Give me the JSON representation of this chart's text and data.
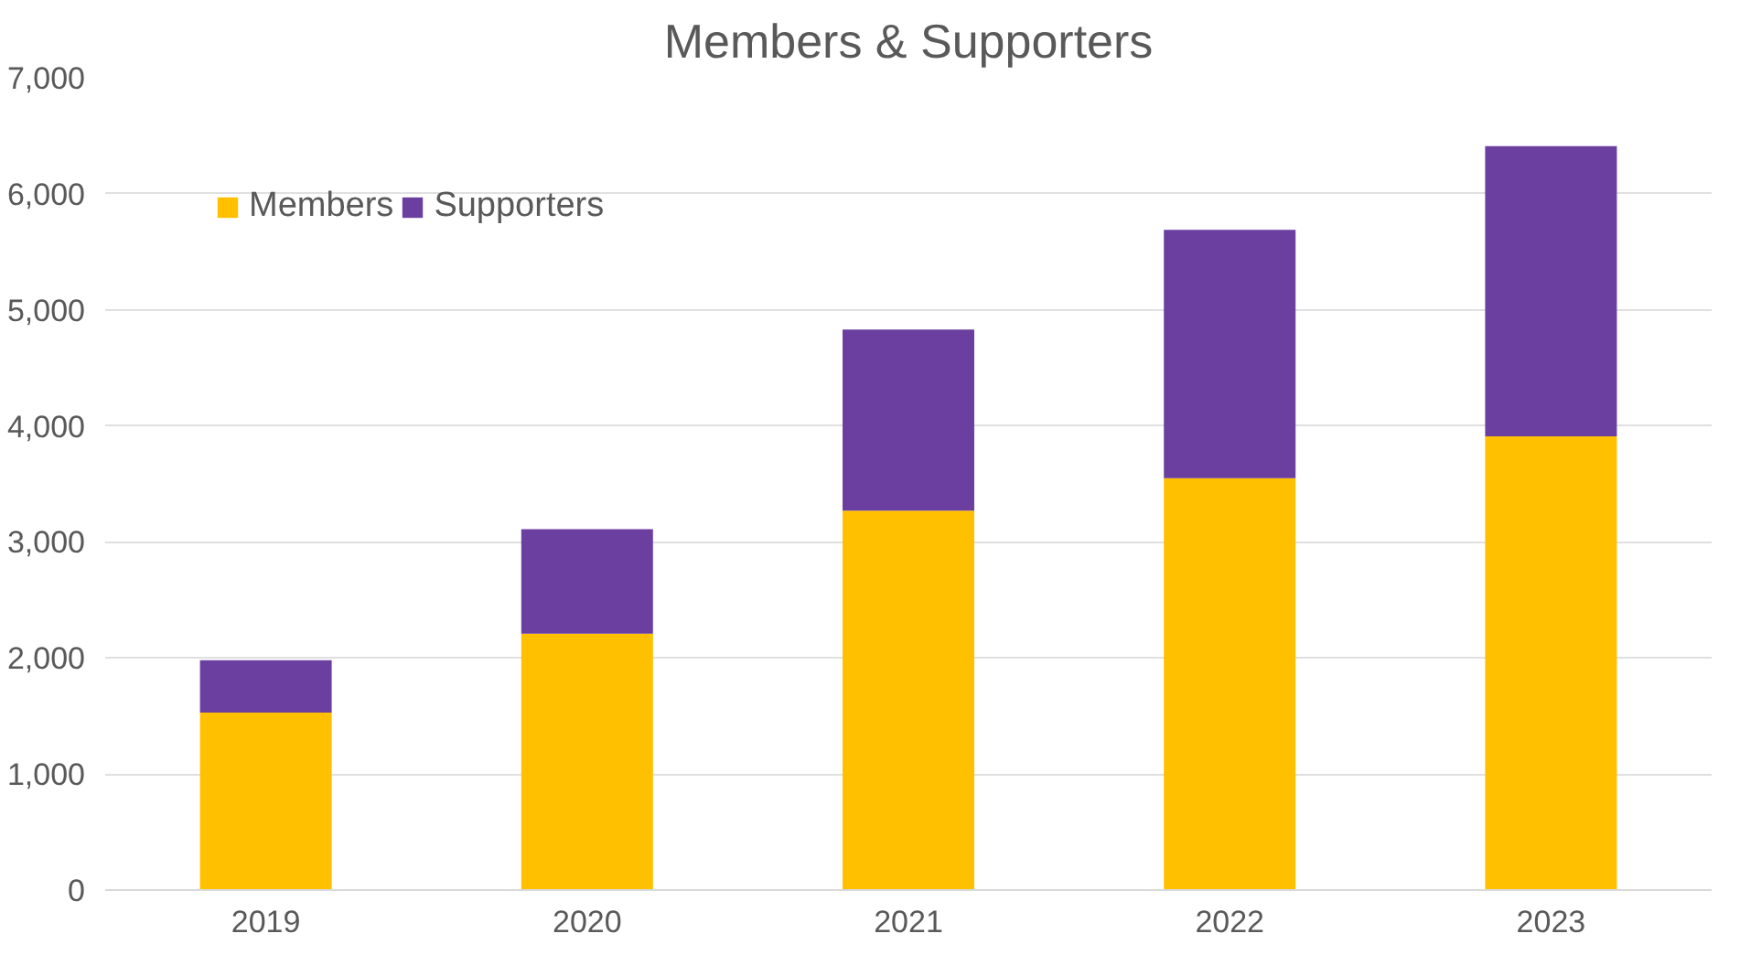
{
  "chart_data": {
    "type": "bar",
    "title": "Members & Supporters",
    "categories": [
      "2019",
      "2020",
      "2021",
      "2022",
      "2023"
    ],
    "stacked": true,
    "series": [
      {
        "name": "Members",
        "color": "#ffc000",
        "values": [
          1530,
          2210,
          3270,
          3550,
          3910
        ]
      },
      {
        "name": "Supporters",
        "color": "#6b3fa0",
        "values": [
          450,
          900,
          1560,
          2140,
          2500
        ]
      }
    ],
    "ylim": [
      0,
      7000
    ],
    "yticks": [
      {
        "value": 0,
        "label": "0"
      },
      {
        "value": 1000,
        "label": "1,000"
      },
      {
        "value": 2000,
        "label": "2,000"
      },
      {
        "value": 3000,
        "label": "3,000"
      },
      {
        "value": 4000,
        "label": "4,000"
      },
      {
        "value": 5000,
        "label": "5,000"
      },
      {
        "value": 6000,
        "label": "6,000"
      },
      {
        "value": 7000,
        "label": "7,000"
      }
    ],
    "grid": "y",
    "legend": "top left"
  }
}
